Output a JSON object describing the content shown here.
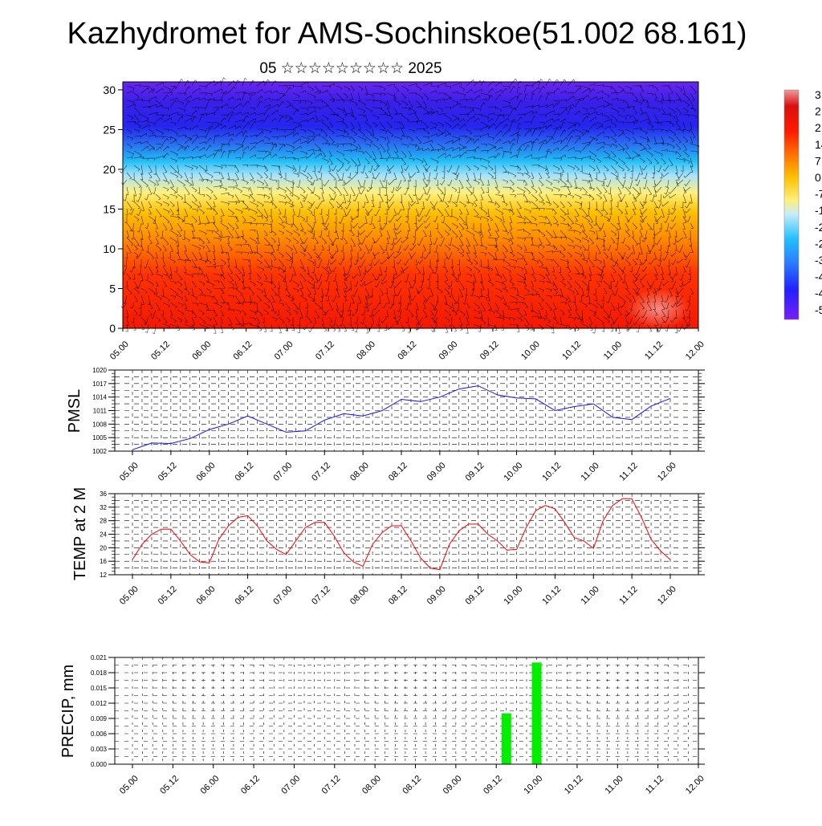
{
  "header": {
    "title": "Kazhydromet for AMS-Sochinskoe(51.002 68.161)",
    "subtitle": "05 ☆☆☆☆☆☆☆☆☆ 2025"
  },
  "time_labels": [
    "05.00",
    "05.12",
    "06.00",
    "06.12",
    "07.00",
    "07.12",
    "08.00",
    "08.12",
    "09.00",
    "09.12",
    "10.00",
    "10.12",
    "11.00",
    "11.12",
    "12.00"
  ],
  "chart_data": [
    {
      "type": "heatmap",
      "name": "cross-section",
      "x_ticks": [
        "05.00",
        "05.12",
        "06.00",
        "06.12",
        "07.00",
        "07.12",
        "08.00",
        "08.12",
        "09.00",
        "09.12",
        "10.00",
        "10.12",
        "11.00",
        "11.12",
        "12.00"
      ],
      "y_ticks": [
        "0",
        "5",
        "10",
        "15",
        "20",
        "25",
        "30"
      ],
      "ylim": [
        0,
        31
      ],
      "colorbar_labels": [
        "3",
        "2",
        "2",
        "14",
        "7",
        "0",
        "-7",
        "-1",
        "-2",
        "-2",
        "-3",
        "-4",
        "-4",
        "-5"
      ],
      "wind_barbs": true
    },
    {
      "type": "line",
      "name": "pmsl",
      "ylabel": "PMSL",
      "ylim": [
        1002,
        1020
      ],
      "y_ticks": [
        "1002",
        "1005",
        "1008",
        "1011",
        "1014",
        "1017",
        "1020"
      ],
      "color": "#1010ff",
      "x": [
        0,
        0.5,
        1,
        1.5,
        2,
        2.5,
        3,
        3.5,
        4,
        4.5,
        5,
        5.5,
        6,
        6.5,
        7,
        7.5,
        8,
        8.5,
        9,
        9.5,
        10,
        10.5,
        11,
        11.5,
        12,
        12.5,
        13,
        13.5,
        14
      ],
      "values": [
        1002.3,
        1003.8,
        1003.7,
        1004.8,
        1006.8,
        1008,
        1009.8,
        1008,
        1006.2,
        1006.5,
        1008.9,
        1010.3,
        1009.8,
        1011,
        1013.5,
        1013,
        1014,
        1015.8,
        1016.5,
        1014.5,
        1013.8,
        1013.6,
        1011,
        1011.9,
        1012.5,
        1009.5,
        1009,
        1012,
        1013.7
      ]
    },
    {
      "type": "line",
      "name": "temp",
      "ylabel": "TEMP at 2 M",
      "ylim": [
        12,
        36
      ],
      "y_ticks": [
        "12",
        "16",
        "20",
        "24",
        "28",
        "32",
        "36"
      ],
      "color": "#ff0000",
      "x": [
        0,
        0.25,
        0.5,
        0.75,
        1,
        1.25,
        1.5,
        1.75,
        2,
        2.25,
        2.5,
        2.75,
        3,
        3.25,
        3.5,
        3.75,
        4,
        4.25,
        4.5,
        4.75,
        5,
        5.25,
        5.5,
        5.75,
        6,
        6.25,
        6.5,
        6.75,
        7,
        7.25,
        7.5,
        7.75,
        8,
        8.25,
        8.5,
        8.75,
        9,
        9.25,
        9.5,
        9.75,
        10,
        10.25,
        10.5,
        10.75,
        11,
        11.25,
        11.5,
        11.75,
        12,
        12.25,
        12.5,
        12.75,
        13,
        13.25,
        13.5,
        13.75,
        14
      ],
      "values": [
        16.5,
        21,
        24,
        25.5,
        25.5,
        22,
        18,
        15.8,
        15.5,
        22.5,
        26.5,
        29,
        29.5,
        26.5,
        22,
        19.5,
        18,
        22,
        26,
        27.5,
        27.5,
        23.5,
        18.5,
        15.8,
        14.5,
        21,
        24.5,
        26.5,
        26.5,
        22,
        17,
        14,
        13.5,
        21,
        25,
        27,
        27,
        24,
        22,
        19.3,
        19.5,
        26,
        31,
        32.5,
        31.5,
        27.5,
        23,
        22,
        19.8,
        28,
        32.5,
        34.5,
        34.5,
        29,
        22.5,
        19,
        16.5
      ]
    },
    {
      "type": "bar",
      "name": "precip",
      "ylabel": "PRECIP, mm",
      "ylim": [
        0,
        0.021
      ],
      "y_ticks": [
        "0.000",
        "0.003",
        "0.006",
        "0.009",
        "0.012",
        "0.015",
        "0.018",
        "0.021"
      ],
      "color": "#00ee00",
      "x": [
        9.25,
        10.0
      ],
      "values": [
        0.01,
        0.02
      ]
    }
  ]
}
